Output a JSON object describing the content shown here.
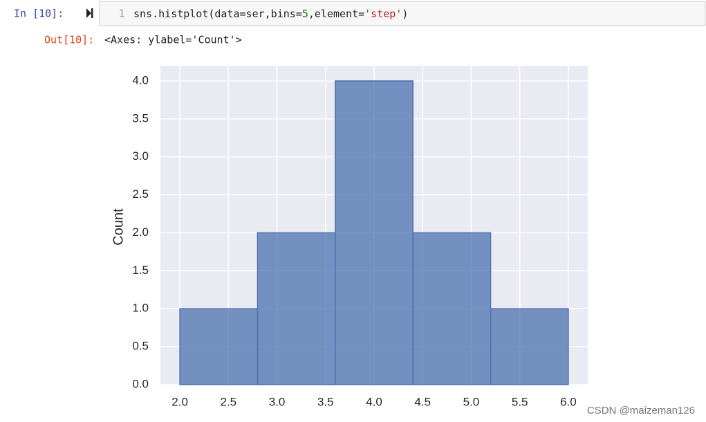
{
  "notebook": {
    "in_prompt": "In [10]:",
    "line_number": "1",
    "code": [
      "sns.histplot(data=ser,bins=",
      "5",
      ",element=",
      "'step'",
      ")"
    ],
    "out_prompt": "Out[10]:",
    "output": "<Axes: ylabel='Count'>",
    "watermark": "CSDN @maizeman126"
  },
  "chart_data": {
    "type": "histogram",
    "y_label": "Count",
    "bins": [
      2.0,
      2.8,
      3.6,
      4.4,
      5.2,
      6.0
    ],
    "values": [
      1,
      2,
      4,
      2,
      1
    ],
    "color": "#4c72b0",
    "xlim": [
      1.8,
      6.2
    ],
    "ylim": [
      0,
      4.2
    ],
    "xticks": [
      {
        "value": 2,
        "label": "2.0"
      },
      2.5,
      {
        "value": 3,
        "label": "3.0"
      },
      3.5,
      {
        "value": 4,
        "label": "4.0"
      },
      4.5,
      {
        "value": 5,
        "label": "5.0"
      },
      5.5,
      {
        "value": 6,
        "label": "6.0"
      }
    ],
    "yticks": [
      {
        "value": 0,
        "label": "0.0"
      },
      0.5,
      {
        "value": 1,
        "label": "1.0"
      },
      1.5,
      {
        "value": 2,
        "label": "2.0"
      },
      2.5,
      {
        "value": 3,
        "label": "3.0"
      },
      3.5,
      {
        "value": 4,
        "label": "4.0"
      }
    ],
    "grid": true
  }
}
